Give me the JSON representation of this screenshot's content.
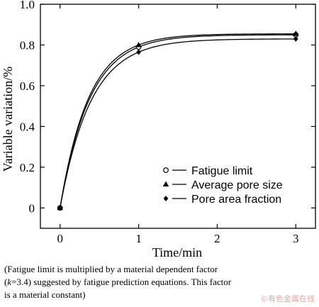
{
  "chart_data": {
    "type": "line",
    "xlabel": "Time/min",
    "ylabel": "Variable variation/%",
    "xlim": [
      -0.25,
      3.25
    ],
    "ylim": [
      -0.1,
      1.0
    ],
    "x_ticks": [
      0,
      1,
      2,
      3
    ],
    "x_tick_labels": [
      "0",
      "1",
      "2",
      "3"
    ],
    "y_ticks": [
      0,
      0.2,
      0.4,
      0.6,
      0.8,
      1.0
    ],
    "y_tick_labels": [
      "0",
      "0.2",
      "0.4",
      "0.6",
      "0.8",
      "1.0"
    ],
    "grid": false,
    "legend_position": "bottom-right",
    "series": [
      {
        "name": "Fatigue limit",
        "marker": "circle",
        "x": [
          0,
          1,
          3
        ],
        "y": [
          0,
          0.79,
          0.85
        ]
      },
      {
        "name": "Average pore size",
        "marker": "triangle",
        "x": [
          0,
          1,
          3
        ],
        "y": [
          0,
          0.8,
          0.855
        ]
      },
      {
        "name": "Pore area fraction",
        "marker": "diamond",
        "x": [
          0,
          1,
          3
        ],
        "y": [
          0,
          0.765,
          0.83
        ]
      }
    ]
  },
  "caption": {
    "line1": "(Fatigue limit is multiplied by a material dependent factor",
    "line2_pre": "(",
    "line2_k": "k",
    "line2_post": "=3.4) suggested by fatigue prediction equations. This factor",
    "line3": "is a material constant)"
  },
  "watermark": "©有色金属在线"
}
